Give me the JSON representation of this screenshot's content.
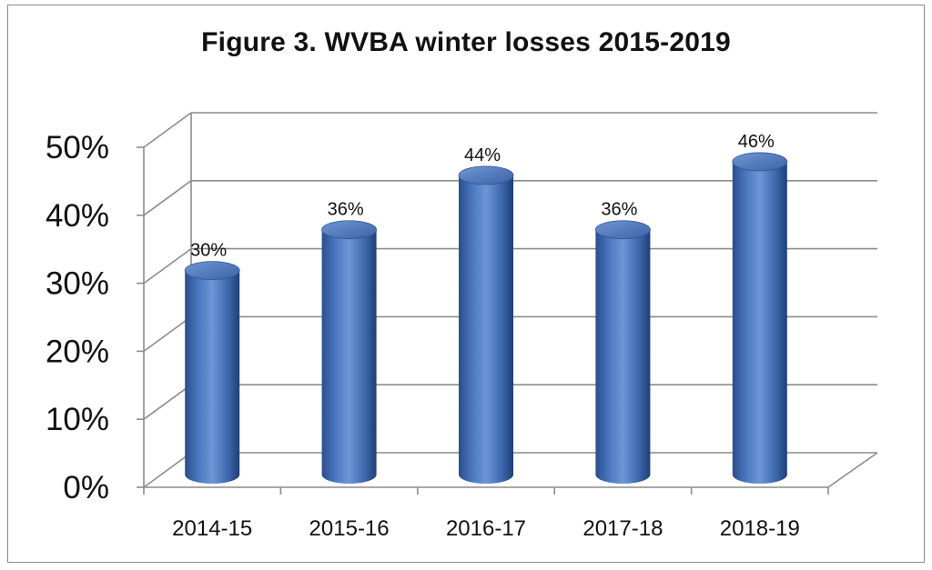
{
  "chart_data": {
    "type": "bar",
    "title": "Figure 3. WVBA winter losses 2015-2019",
    "categories": [
      "2014-15",
      "2015-16",
      "2016-17",
      "2017-18",
      "2018-19"
    ],
    "values": [
      30,
      36,
      44,
      36,
      46
    ],
    "data_labels": [
      "30%",
      "36%",
      "44%",
      "36%",
      "46%"
    ],
    "y_ticks": [
      {
        "value": 0,
        "label": "0%"
      },
      {
        "value": 10,
        "label": "10%"
      },
      {
        "value": 20,
        "label": "20%"
      },
      {
        "value": 30,
        "label": "30%"
      },
      {
        "value": 40,
        "label": "40%"
      },
      {
        "value": 50,
        "label": "50%"
      }
    ],
    "ylim": [
      0,
      50
    ],
    "xlabel": "",
    "ylabel": "",
    "grid": true,
    "style": "3d-cylinder",
    "bar_color": "#4a76be",
    "legend": "none"
  }
}
